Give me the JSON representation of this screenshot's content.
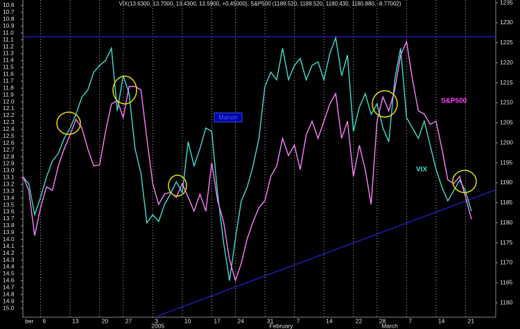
{
  "chart_data": {
    "type": "line",
    "title": "VIX(13.6300, 13.7000, 13.4300, 13.5900, +0.45000), S&P500 (1189.520, 1189.520, 1180.430, 1180.880, -8.77002)",
    "annotation": "Mahon",
    "categories": [
      "ber",
      null,
      null,
      "6",
      null,
      null,
      null,
      null,
      "13",
      null,
      null,
      null,
      null,
      "20",
      null,
      null,
      null,
      "27",
      null,
      null,
      null,
      null,
      "3",
      null,
      null,
      null,
      null,
      "10",
      null,
      null,
      null,
      null,
      "17",
      null,
      null,
      null,
      "24",
      null,
      null,
      null,
      null,
      "31",
      null,
      null,
      null,
      null,
      "7",
      null,
      null,
      null,
      null,
      "14",
      null,
      null,
      null,
      null,
      "22",
      null,
      null,
      null,
      "28",
      null,
      null,
      null,
      null,
      "7",
      null,
      null,
      null,
      null,
      "14",
      null,
      null,
      null,
      null,
      "21",
      null
    ],
    "months": [
      null,
      null,
      null,
      null,
      null,
      null,
      null,
      null,
      null,
      null,
      null,
      null,
      null,
      null,
      null,
      null,
      null,
      null,
      null,
      null,
      null,
      null,
      "2005",
      null,
      null,
      null,
      null,
      null,
      null,
      null,
      null,
      null,
      null,
      null,
      null,
      null,
      null,
      null,
      null,
      null,
      null,
      null,
      "February",
      null,
      null,
      null,
      null,
      null,
      null,
      null,
      null,
      null,
      null,
      null,
      null,
      null,
      null,
      null,
      null,
      null,
      null,
      "March",
      null,
      null,
      null,
      null,
      null,
      null,
      null,
      null,
      null,
      null,
      null,
      null,
      null,
      null,
      null
    ],
    "series": [
      {
        "name": "VIX",
        "color": "#40e0d0",
        "axis": "y",
        "values": [
          13.09,
          13.19,
          13.64,
          13.39,
          13.09,
          12.86,
          12.75,
          12.53,
          12.38,
          12.18,
          11.93,
          11.83,
          11.57,
          11.47,
          11.4,
          11.22,
          12.13,
          11.62,
          11.88,
          12.68,
          13.04,
          13.76,
          13.64,
          13.74,
          13.49,
          13.34,
          13.16,
          13.32,
          12.58,
          12.93,
          12.68,
          12.38,
          12.43,
          13.34,
          14.04,
          14.6,
          13.99,
          13.44,
          13.24,
          12.93,
          12.53,
          11.78,
          11.57,
          11.68,
          11.22,
          11.68,
          11.47,
          11.37,
          11.68,
          11.47,
          11.42,
          11.68,
          11.3,
          11.07,
          11.62,
          11.32,
          12.43,
          12.08,
          11.88,
          12.18,
          12.03,
          12.38,
          12.58,
          11.68,
          11.22,
          12.23,
          12.38,
          12.53,
          12.28,
          12.63,
          12.98,
          13.24,
          13.44,
          13.29,
          13.14,
          13.3,
          13.59
        ]
      },
      {
        "name": "S&P500",
        "color": "#ff80ff",
        "axis": "y2",
        "values": [
          1191.6,
          1188.1,
          1176.8,
          1183.8,
          1189.0,
          1188.1,
          1194.2,
          1198.5,
          1202.0,
          1205.9,
          1203.7,
          1198.5,
          1194.2,
          1194.5,
          1202.8,
          1209.7,
          1210.6,
          1206.3,
          1214.1,
          1214.1,
          1213.2,
          1201.1,
          1189.8,
          1184.6,
          1187.2,
          1187.6,
          1186.4,
          1189.8,
          1186.4,
          1182.9,
          1187.2,
          1182.9,
          1195.0,
          1185.5,
          1180.3,
          1170.8,
          1165.6,
          1169.9,
          1176.0,
          1180.3,
          1183.8,
          1185.5,
          1191.6,
          1194.2,
          1201.1,
          1196.8,
          1199.4,
          1193.3,
          1202.0,
          1205.4,
          1201.1,
          1205.4,
          1209.7,
          1212.3,
          1201.1,
          1205.4,
          1191.6,
          1199.4,
          1193.3,
          1184.6,
          1205.4,
          1211.5,
          1208.0,
          1213.2,
          1221.9,
          1225.3,
          1215.8,
          1208.0,
          1207.2,
          1204.6,
          1205.4,
          1198.5,
          1190.7,
          1189.8,
          1191.6,
          1186.4,
          1180.88
        ]
      }
    ],
    "ylim": [
      15.13,
      10.52
    ],
    "yticks": [
      10.6,
      10.7,
      10.8,
      10.9,
      {
        "value": 11,
        "label": "11.0"
      },
      11.1,
      11.2,
      11.3,
      11.4,
      11.5,
      11.6,
      11.7,
      11.8,
      11.9,
      {
        "value": 12,
        "label": "12.0"
      },
      12.1,
      12.2,
      12.3,
      12.4,
      12.5,
      12.6,
      12.7,
      12.8,
      12.9,
      {
        "value": 13,
        "label": "13.0"
      },
      13.1,
      13.2,
      13.3,
      13.4,
      13.5,
      13.6,
      13.7,
      13.8,
      13.9,
      {
        "value": 14,
        "label": "14.0"
      },
      14.1,
      14.2,
      14.3,
      14.4,
      14.5,
      14.6,
      14.7,
      14.8,
      14.9,
      {
        "value": 15,
        "label": "15.0"
      }
    ],
    "y2lim": [
      1156.4,
      1235.7
    ],
    "y2ticks": [
      1160,
      1165,
      1170,
      1175,
      1180,
      1185,
      1190,
      1195,
      1200,
      1205,
      1210,
      1215,
      1220,
      1225,
      1230,
      1235
    ],
    "grid": true
  }
}
